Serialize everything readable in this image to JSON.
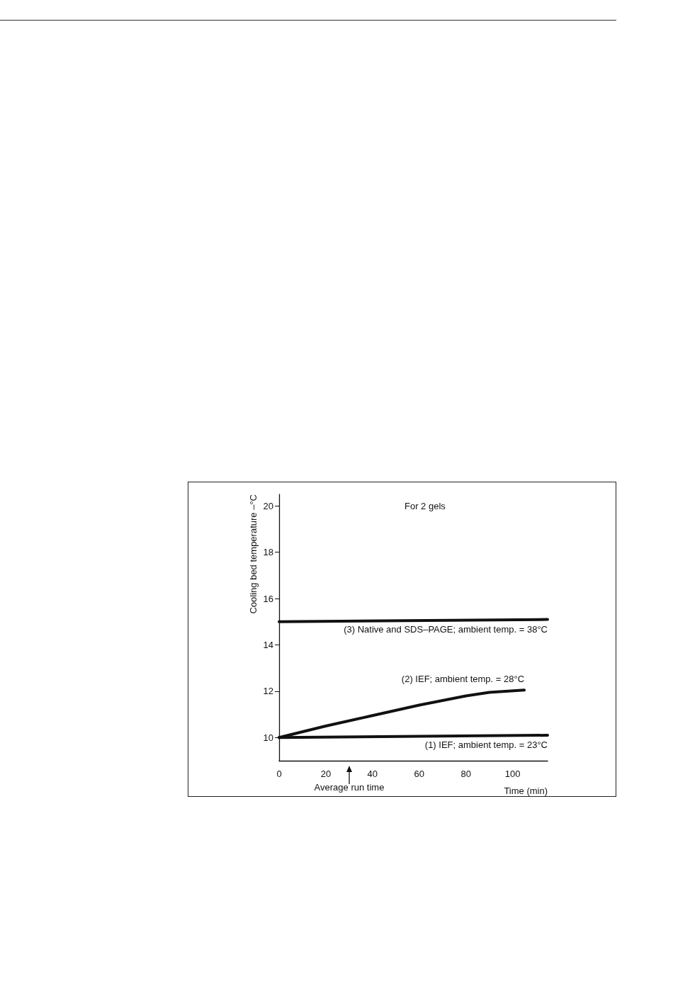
{
  "chart_data": {
    "type": "line",
    "title": "For 2 gels",
    "xlabel": "Time (min)",
    "ylabel": "Cooling bed temperature –°C",
    "xlim": [
      0,
      115
    ],
    "xticks": [
      0,
      20,
      40,
      60,
      80,
      100
    ],
    "ylim": [
      9,
      20.5
    ],
    "yticks": [
      10,
      12,
      14,
      16,
      18,
      20
    ],
    "grid": false,
    "legend": false,
    "marker": "none",
    "line_style": "solid",
    "annotations": [
      "Average run time"
    ],
    "series": [
      {
        "name": "(3) Native and SDS–PAGE; ambient temp. = 38°C",
        "color": "#111111",
        "x": [
          0,
          115
        ],
        "values": [
          15,
          15.1
        ]
      },
      {
        "name": "(2) IEF; ambient temp. = 28°C",
        "color": "#111111",
        "x": [
          0,
          20,
          40,
          60,
          80,
          90,
          105
        ],
        "values": [
          10,
          10.5,
          10.95,
          11.4,
          11.8,
          11.95,
          12.05
        ]
      },
      {
        "name": "(1) IEF; ambient temp. = 23°C",
        "color": "#111111",
        "x": [
          0,
          115
        ],
        "values": [
          10,
          10.1
        ]
      }
    ]
  }
}
